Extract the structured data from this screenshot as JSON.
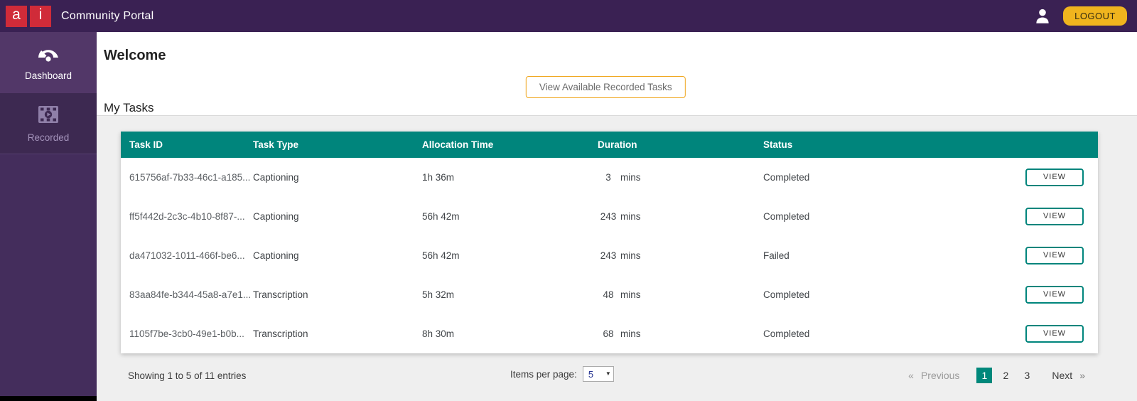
{
  "topbar": {
    "logo_letters": {
      "first": "a",
      "second": "i"
    },
    "title": "Community Portal",
    "logout_label": "LOGOUT"
  },
  "sidebar": {
    "items": [
      {
        "label": "Dashboard",
        "icon": "gauge-icon",
        "active": true
      },
      {
        "label": "Recorded",
        "icon": "video-film-icon",
        "active": false
      }
    ]
  },
  "main": {
    "welcome_title": "Welcome",
    "view_tasks_button": "View Available Recorded Tasks",
    "section_title": "My Tasks",
    "table": {
      "columns": [
        "Task ID",
        "Task Type",
        "Allocation Time",
        "Duration",
        "Status"
      ],
      "rows": [
        {
          "task_id": "615756af-7b33-46c1-a185...",
          "task_type": "Captioning",
          "allocation_time": "1h 36m",
          "duration_value": "3",
          "duration_unit": "mins",
          "status": "Completed",
          "action": "VIEW"
        },
        {
          "task_id": "ff5f442d-2c3c-4b10-8f87-...",
          "task_type": "Captioning",
          "allocation_time": "56h 42m",
          "duration_value": "243",
          "duration_unit": "mins",
          "status": "Completed",
          "action": "VIEW"
        },
        {
          "task_id": "da471032-1011-466f-be6...",
          "task_type": "Captioning",
          "allocation_time": "56h 42m",
          "duration_value": "243",
          "duration_unit": "mins",
          "status": "Failed",
          "action": "VIEW"
        },
        {
          "task_id": "83aa84fe-b344-45a8-a7e1...",
          "task_type": "Transcription",
          "allocation_time": "5h 32m",
          "duration_value": "48",
          "duration_unit": "mins",
          "status": "Completed",
          "action": "VIEW"
        },
        {
          "task_id": "1105f7be-3cb0-49e1-b0b...",
          "task_type": "Transcription",
          "allocation_time": "8h 30m",
          "duration_value": "68",
          "duration_unit": "mins",
          "status": "Completed",
          "action": "VIEW"
        }
      ]
    },
    "footer": {
      "showing_text": "Showing 1 to 5 of 11 entries",
      "items_per_page_label": "Items per page:",
      "items_per_page_value": "5",
      "pagination": {
        "prev_arrow": "«",
        "previous_label": "Previous",
        "pages": [
          "1",
          "2",
          "3"
        ],
        "active_page": "1",
        "next_label": "Next",
        "next_arrow": "»"
      }
    }
  },
  "colors": {
    "topbar_purple": "#3A2153",
    "sidebar_purple": "#442D5C",
    "sidebar_active": "#523768",
    "logo_red": "#D02B39",
    "gold": "#F0B41E",
    "gold_outline": "#F0A71F",
    "teal": "#00857C",
    "page_gray": "#EFEFEF"
  }
}
